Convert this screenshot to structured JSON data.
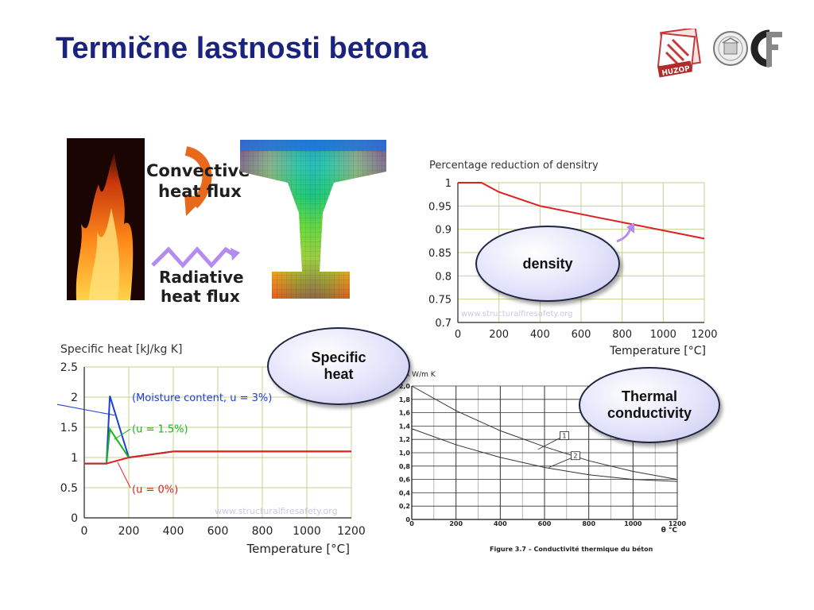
{
  "slide": {
    "title": "Termične lastnosti betona"
  },
  "logos": {
    "huzop_text": "HUZOP"
  },
  "colors": {
    "title": "#1a237e",
    "grid_green": "#c5d38a",
    "density_line": "#e02020",
    "specific_blue": "#1d3fd6",
    "specific_green": "#19b51d",
    "specific_red": "#e02020",
    "arrow_purple": "#b48cf0",
    "arrow_orange": "#e8681c"
  },
  "heat_flux_panel": {
    "convective_label_line1": "Convective",
    "convective_label_line2": "heat flux",
    "radiative_label_line1": "Radiative",
    "radiative_label_line2": "heat flux"
  },
  "ovals": {
    "density": "density",
    "specific_heat_line1": "Specific",
    "specific_heat_line2": "heat",
    "thermal_line1": "Thermal",
    "thermal_line2": "conductivity"
  },
  "chart_data": [
    {
      "type": "line",
      "title": "Percentage reduction of densitry",
      "xlabel": "Temperature [°C]",
      "ylabel": "",
      "watermark": "www.structuralfiresafety.org",
      "xlim": [
        0,
        1200
      ],
      "ylim": [
        0.7,
        1
      ],
      "x_ticks": [
        "0",
        "200",
        "400",
        "600",
        "800",
        "1000",
        "1200"
      ],
      "y_ticks": [
        "0.7",
        "0.75",
        "0.8",
        "0.85",
        "0.9",
        "0.95",
        "1"
      ],
      "grid": true,
      "series": [
        {
          "x": [
            0,
            115,
            200,
            400,
            1200
          ],
          "y": [
            1,
            1,
            0.98,
            0.95,
            0.88
          ]
        }
      ]
    },
    {
      "type": "line",
      "title": "Specific heat [kJ/kg K]",
      "xlabel": "Temperature [°C]",
      "ylabel": "",
      "watermark": "www.structuralfiresafety.org",
      "xlim": [
        0,
        1200
      ],
      "ylim": [
        0,
        2.5
      ],
      "x_ticks": [
        "0",
        "200",
        "400",
        "600",
        "800",
        "1000",
        "1200"
      ],
      "y_ticks": [
        "0",
        "0.5",
        "1",
        "1.5",
        "2",
        "2.5"
      ],
      "grid": true,
      "annotations": [
        "(Moisture content, u = 3%)",
        "(u = 1.5%)",
        "(u = 0%)"
      ],
      "series": [
        {
          "x": [
            0,
            100,
            115,
            200,
            400,
            1200
          ],
          "y": [
            0.9,
            0.9,
            2.02,
            1.0,
            1.1,
            1.1
          ]
        },
        {
          "x": [
            0,
            100,
            115,
            200,
            400,
            1200
          ],
          "y": [
            0.9,
            0.9,
            1.47,
            1.0,
            1.1,
            1.1
          ]
        },
        {
          "x": [
            0,
            100,
            200,
            400,
            1200
          ],
          "y": [
            0.9,
            0.9,
            1.0,
            1.1,
            1.1
          ]
        }
      ]
    },
    {
      "type": "line",
      "title": "",
      "ylabel": "λ W/m K",
      "xlabel": "θ °C",
      "caption": "Figure 3.7 – Conductivité thermique du béton",
      "xlim": [
        0,
        1200
      ],
      "ylim": [
        0,
        2.0
      ],
      "x_ticks": [
        "0",
        "200",
        "400",
        "600",
        "800",
        "1000",
        "1200"
      ],
      "y_ticks": [
        "0",
        "0,2",
        "0,4",
        "0,6",
        "0,8",
        "1,0",
        "1,2",
        "1,4",
        "1,6",
        "1,8",
        "2,0"
      ],
      "grid": true,
      "curve_labels": [
        "1",
        "2"
      ],
      "series": [
        {
          "x": [
            0,
            200,
            400,
            600,
            800,
            1000,
            1200
          ],
          "y": [
            2.0,
            1.63,
            1.33,
            1.09,
            0.88,
            0.72,
            0.6
          ]
        },
        {
          "x": [
            0,
            200,
            400,
            600,
            800,
            1000,
            1200
          ],
          "y": [
            1.36,
            1.12,
            0.93,
            0.78,
            0.67,
            0.6,
            0.57
          ]
        }
      ]
    }
  ]
}
